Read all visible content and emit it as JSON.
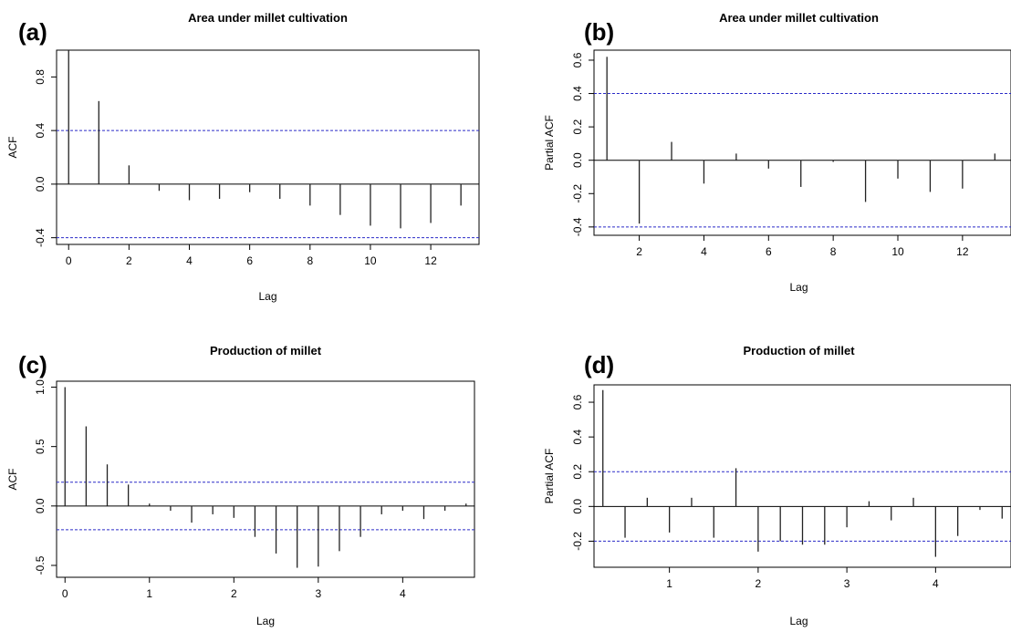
{
  "chart_data": [
    {
      "panel_label": "(a)",
      "type": "bar",
      "title": "Area under millet cultivation",
      "xlabel": "Lag",
      "ylabel": "ACF",
      "xlim": [
        -0.4,
        13.6
      ],
      "ylim": [
        -0.45,
        1.0
      ],
      "xticks": [
        0,
        2,
        4,
        6,
        8,
        10,
        12
      ],
      "yticks": [
        -0.4,
        0.0,
        0.4,
        0.8
      ],
      "confidence_bound": 0.4,
      "zero_line": true,
      "grid": false,
      "lags": [
        0,
        1,
        2,
        3,
        4,
        5,
        6,
        7,
        8,
        9,
        10,
        11,
        12,
        13
      ],
      "values": [
        1.0,
        0.62,
        0.14,
        -0.05,
        -0.12,
        -0.11,
        -0.06,
        -0.11,
        -0.16,
        -0.23,
        -0.31,
        -0.33,
        -0.29,
        -0.16
      ]
    },
    {
      "panel_label": "(b)",
      "type": "bar",
      "title": "Area under millet cultivation",
      "xlabel": "Lag",
      "ylabel": "Partial ACF",
      "xlim": [
        0.6,
        13.5
      ],
      "ylim": [
        -0.45,
        0.66
      ],
      "xticks": [
        2,
        4,
        6,
        8,
        10,
        12
      ],
      "yticks": [
        -0.4,
        -0.2,
        0.0,
        0.2,
        0.4,
        0.6
      ],
      "confidence_bound": 0.4,
      "zero_line": true,
      "grid": false,
      "lags": [
        1,
        2,
        3,
        4,
        5,
        6,
        7,
        8,
        9,
        10,
        11,
        12,
        13
      ],
      "values": [
        0.62,
        -0.38,
        0.11,
        -0.14,
        0.04,
        -0.05,
        -0.16,
        -0.01,
        -0.25,
        -0.11,
        -0.19,
        -0.17,
        0.04
      ]
    },
    {
      "panel_label": "(c)",
      "type": "bar",
      "title": "Production of millet",
      "xlabel": "Lag",
      "ylabel": "ACF",
      "xlim": [
        -0.1,
        4.85
      ],
      "ylim": [
        -0.6,
        1.05
      ],
      "xticks": [
        0,
        1,
        2,
        3,
        4
      ],
      "yticks": [
        -0.5,
        0.0,
        0.5,
        1.0
      ],
      "confidence_bound": 0.2,
      "zero_line": true,
      "grid": false,
      "lags": [
        0,
        0.25,
        0.5,
        0.75,
        1.0,
        1.25,
        1.5,
        1.75,
        2.0,
        2.25,
        2.5,
        2.75,
        3.0,
        3.25,
        3.5,
        3.75,
        4.0,
        4.25,
        4.5,
        4.75
      ],
      "values": [
        1.0,
        0.67,
        0.35,
        0.18,
        0.02,
        -0.04,
        -0.14,
        -0.07,
        -0.1,
        -0.26,
        -0.4,
        -0.52,
        -0.51,
        -0.38,
        -0.26,
        -0.07,
        -0.04,
        -0.11,
        -0.04,
        0.02
      ]
    },
    {
      "panel_label": "(d)",
      "type": "bar",
      "title": "Production of millet",
      "xlabel": "Lag",
      "ylabel": "Partial ACF",
      "xlim": [
        0.15,
        4.85
      ],
      "ylim": [
        -0.35,
        0.7
      ],
      "xticks": [
        1,
        2,
        3,
        4
      ],
      "yticks": [
        -0.2,
        0.0,
        0.2,
        0.4,
        0.6
      ],
      "confidence_bound": 0.2,
      "zero_line": true,
      "grid": false,
      "lags": [
        0.25,
        0.5,
        0.75,
        1.0,
        1.25,
        1.5,
        1.75,
        2.0,
        2.25,
        2.5,
        2.75,
        3.0,
        3.25,
        3.5,
        3.75,
        4.0,
        4.25,
        4.5,
        4.75
      ],
      "values": [
        0.67,
        -0.18,
        0.05,
        -0.15,
        0.05,
        -0.18,
        0.22,
        -0.26,
        -0.2,
        -0.22,
        -0.22,
        -0.12,
        0.03,
        -0.08,
        0.05,
        -0.29,
        -0.17,
        -0.02,
        -0.07
      ]
    }
  ],
  "colors": {
    "bar": "#222222",
    "confidence_line": "#2b2bc8",
    "axis": "#000000",
    "text": "#000000"
  }
}
